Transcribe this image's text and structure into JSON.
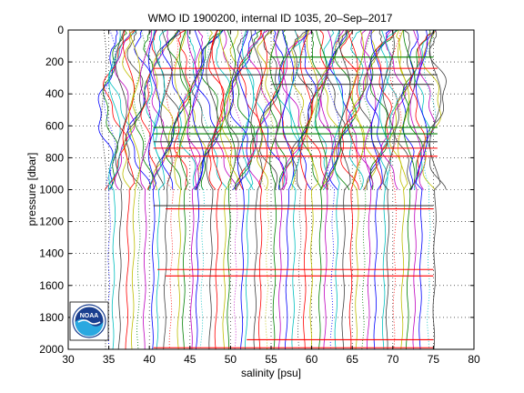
{
  "chart_data": {
    "type": "line",
    "title": "WMO ID 1900200, internal ID 1035, 20–Sep–2017",
    "xlabel": "salinity [psu]",
    "ylabel": "pressure [dbar]",
    "xlim": [
      30,
      80
    ],
    "ylim": [
      0,
      2000
    ],
    "y_reversed": true,
    "grid": "dotted",
    "xticks": [
      "30",
      "35",
      "40",
      "45",
      "50",
      "55",
      "60",
      "65",
      "70",
      "75",
      "80"
    ],
    "yticks": [
      "0",
      "200",
      "400",
      "600",
      "800",
      "1000",
      "1200",
      "1400",
      "1600",
      "1800",
      "2000"
    ],
    "series_note": "Many stacked salinity profiles, each offset along the salinity axis; shallow profiles end at about 1000 dbar and deeper profiles reach 2000 dbar.",
    "series_colors": [
      "#0000ff",
      "#008000",
      "#ff0000",
      "#00bfbf",
      "#bf00bf",
      "#bfbf00",
      "#404040"
    ],
    "profiles": {
      "shallow": {
        "count": 70,
        "x_start": 34.6,
        "x_end": 75.4,
        "bottom": 1000
      },
      "deep": {
        "count": 52,
        "x_start": 35.0,
        "x_end": 75.2,
        "bottom": 2000
      }
    },
    "horizontal_anomalies": [
      {
        "y": 240,
        "x0": 40.5,
        "x1": 75.5,
        "color": "#ff0000"
      },
      {
        "y": 280,
        "x0": 40.5,
        "x1": 75.5,
        "color": "#404040"
      },
      {
        "y": 170,
        "x0": 55,
        "x1": 75,
        "color": "#008000"
      },
      {
        "y": 340,
        "x0": 55,
        "x1": 75,
        "color": "#404040"
      },
      {
        "y": 610,
        "x0": 40.5,
        "x1": 75.5,
        "color": "#008000"
      },
      {
        "y": 650,
        "x0": 40.5,
        "x1": 75.5,
        "color": "#008000"
      },
      {
        "y": 700,
        "x0": 40.5,
        "x1": 75.5,
        "color": "#404040"
      },
      {
        "y": 740,
        "x0": 40.5,
        "x1": 75.5,
        "color": "#ff0000"
      },
      {
        "y": 790,
        "x0": 42,
        "x1": 75.5,
        "color": "#ff0000"
      },
      {
        "y": 1100,
        "x0": 40.5,
        "x1": 75,
        "color": "#404040"
      },
      {
        "y": 1120,
        "x0": 42,
        "x1": 75,
        "color": "#ff0000"
      },
      {
        "y": 1500,
        "x0": 41,
        "x1": 75,
        "color": "#ff0000"
      },
      {
        "y": 1540,
        "x0": 42,
        "x1": 75,
        "color": "#ff0000"
      },
      {
        "y": 1990,
        "x0": 40.5,
        "x1": 75,
        "color": "#ff0000"
      },
      {
        "y": 1940,
        "x0": 52,
        "x1": 75,
        "color": "#ff0000"
      }
    ]
  },
  "logo": {
    "text": "NOAA"
  }
}
